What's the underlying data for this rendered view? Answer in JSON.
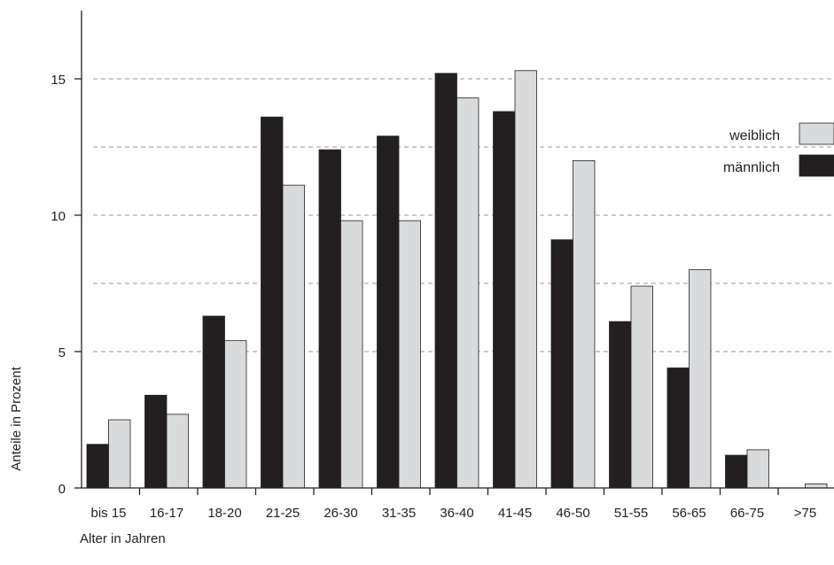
{
  "chart_data": {
    "type": "bar",
    "categories": [
      "bis 15",
      "16-17",
      "18-20",
      "21-25",
      "26-30",
      "31-35",
      "36-40",
      "41-45",
      "46-50",
      "51-55",
      "56-65",
      "66-75",
      ">75"
    ],
    "series": [
      {
        "name": "männlich",
        "color": "#231f20",
        "values": [
          1.6,
          3.4,
          6.3,
          13.6,
          12.4,
          12.9,
          15.2,
          13.8,
          9.1,
          6.1,
          4.4,
          1.2,
          0.0
        ]
      },
      {
        "name": "weiblich",
        "color": "#d9dadb",
        "values": [
          2.5,
          2.7,
          5.4,
          11.1,
          9.8,
          9.8,
          14.3,
          15.3,
          12.0,
          7.4,
          8.0,
          1.4,
          0.15
        ]
      }
    ],
    "xlabel": "Alter in Jahren",
    "ylabel": "Anteile in Prozent",
    "ylim": [
      0,
      17.5
    ],
    "yticks": [
      "0",
      "5",
      "10",
      "15"
    ],
    "ytick_values": [
      0,
      5,
      10,
      15
    ],
    "gridlines": [
      5,
      7.5,
      10,
      12.5,
      15
    ],
    "grid": "dashed horizontal",
    "legend": {
      "position": "top-right",
      "items": [
        {
          "label": "weiblich",
          "color": "#d9dadb"
        },
        {
          "label": "männlich",
          "color": "#231f20"
        }
      ]
    }
  }
}
